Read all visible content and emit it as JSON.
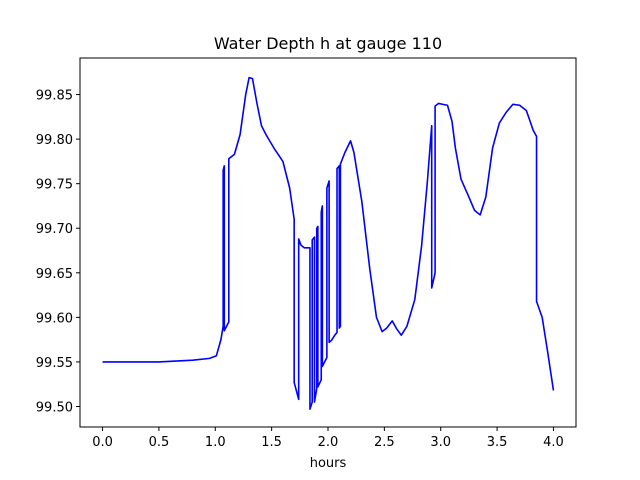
{
  "chart_data": {
    "type": "line",
    "title": "Water Depth h at gauge 110",
    "xlabel": "hours",
    "ylabel": "",
    "xlim": [
      -0.2,
      4.2
    ],
    "ylim": [
      99.477,
      99.891
    ],
    "grid": false,
    "legend": "none",
    "x_ticks": [
      0.0,
      0.5,
      1.0,
      1.5,
      2.0,
      2.5,
      3.0,
      3.5,
      4.0
    ],
    "x_tick_labels": [
      "0.0",
      "0.5",
      "1.0",
      "1.5",
      "2.0",
      "2.5",
      "3.0",
      "3.5",
      "4.0"
    ],
    "y_ticks": [
      99.5,
      99.55,
      99.6,
      99.65,
      99.7,
      99.75,
      99.8,
      99.85
    ],
    "y_tick_labels": [
      "99.50",
      "99.55",
      "99.60",
      "99.65",
      "99.70",
      "99.75",
      "99.80",
      "99.85"
    ],
    "series": [
      {
        "color": "#0000ff",
        "points": [
          [
            0.0,
            99.55
          ],
          [
            0.5,
            99.55
          ],
          [
            0.8,
            99.552
          ],
          [
            0.95,
            99.554
          ],
          [
            1.01,
            99.557
          ],
          [
            1.05,
            99.575
          ],
          [
            1.07,
            99.59
          ],
          [
            1.07,
            99.765
          ],
          [
            1.08,
            99.77
          ],
          [
            1.08,
            99.585
          ],
          [
            1.12,
            99.595
          ],
          [
            1.12,
            99.778
          ],
          [
            1.17,
            99.783
          ],
          [
            1.22,
            99.805
          ],
          [
            1.27,
            99.85
          ],
          [
            1.3,
            99.869
          ],
          [
            1.33,
            99.868
          ],
          [
            1.37,
            99.84
          ],
          [
            1.41,
            99.815
          ],
          [
            1.45,
            99.805
          ],
          [
            1.52,
            99.79
          ],
          [
            1.6,
            99.775
          ],
          [
            1.66,
            99.745
          ],
          [
            1.7,
            99.71
          ],
          [
            1.7,
            99.527
          ],
          [
            1.74,
            99.508
          ],
          [
            1.74,
            99.688
          ],
          [
            1.76,
            99.681
          ],
          [
            1.79,
            99.678
          ],
          [
            1.84,
            99.678
          ],
          [
            1.84,
            99.497
          ],
          [
            1.86,
            99.505
          ],
          [
            1.86,
            99.687
          ],
          [
            1.88,
            99.69
          ],
          [
            1.88,
            99.505
          ],
          [
            1.9,
            99.52
          ],
          [
            1.9,
            99.7
          ],
          [
            1.91,
            99.702
          ],
          [
            1.91,
            99.522
          ],
          [
            1.94,
            99.53
          ],
          [
            1.94,
            99.718
          ],
          [
            1.95,
            99.725
          ],
          [
            1.95,
            99.545
          ],
          [
            1.99,
            99.555
          ],
          [
            1.99,
            99.745
          ],
          [
            2.01,
            99.753
          ],
          [
            2.01,
            99.572
          ],
          [
            2.03,
            99.574
          ],
          [
            2.06,
            99.58
          ],
          [
            2.08,
            99.583
          ],
          [
            2.08,
            99.767
          ],
          [
            2.1,
            99.77
          ],
          [
            2.1,
            99.588
          ],
          [
            2.11,
            99.59
          ],
          [
            2.11,
            99.772
          ],
          [
            2.15,
            99.785
          ],
          [
            2.2,
            99.798
          ],
          [
            2.23,
            99.785
          ],
          [
            2.3,
            99.73
          ],
          [
            2.37,
            99.655
          ],
          [
            2.43,
            99.6
          ],
          [
            2.48,
            99.584
          ],
          [
            2.52,
            99.588
          ],
          [
            2.57,
            99.596
          ],
          [
            2.61,
            99.587
          ],
          [
            2.65,
            99.58
          ],
          [
            2.7,
            99.59
          ],
          [
            2.77,
            99.62
          ],
          [
            2.83,
            99.68
          ],
          [
            2.88,
            99.75
          ],
          [
            2.92,
            99.815
          ],
          [
            2.92,
            99.633
          ],
          [
            2.95,
            99.65
          ],
          [
            2.95,
            99.837
          ],
          [
            2.98,
            99.84
          ],
          [
            3.02,
            99.839
          ],
          [
            3.06,
            99.838
          ],
          [
            3.1,
            99.82
          ],
          [
            3.13,
            99.79
          ],
          [
            3.18,
            99.755
          ],
          [
            3.25,
            99.735
          ],
          [
            3.3,
            99.72
          ],
          [
            3.35,
            99.715
          ],
          [
            3.4,
            99.735
          ],
          [
            3.46,
            99.79
          ],
          [
            3.52,
            99.818
          ],
          [
            3.58,
            99.83
          ],
          [
            3.64,
            99.839
          ],
          [
            3.7,
            99.838
          ],
          [
            3.76,
            99.832
          ],
          [
            3.82,
            99.81
          ],
          [
            3.85,
            99.803
          ],
          [
            3.85,
            99.618
          ],
          [
            3.9,
            99.6
          ],
          [
            3.95,
            99.56
          ],
          [
            4.0,
            99.518
          ]
        ]
      }
    ]
  }
}
